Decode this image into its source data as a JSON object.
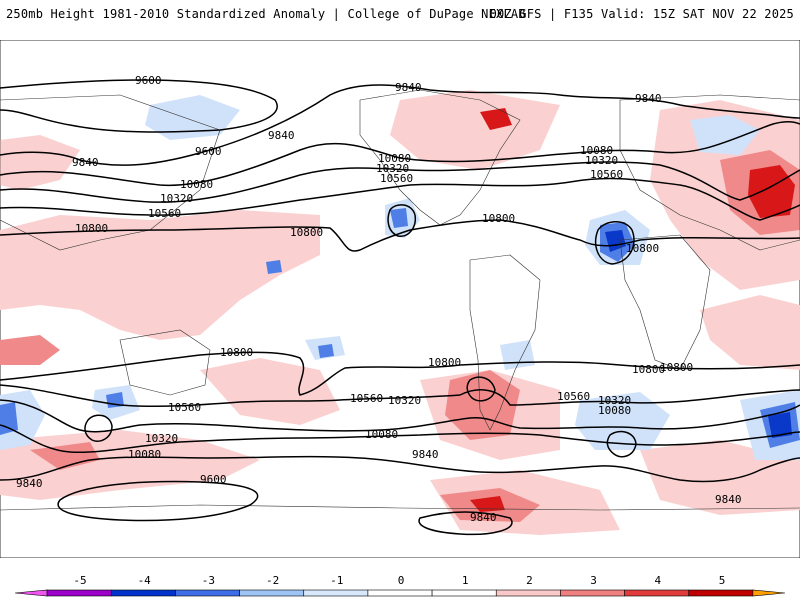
{
  "header": {
    "left": "250mb Height 1981-2010 Standardized Anomaly | College of DuPage NEXLAB",
    "right": "00Z GFS | F135 Valid: 15Z SAT NOV 22 2025"
  },
  "contour_labels": [
    "9600",
    "9840",
    "10080",
    "10320",
    "10560",
    "10800"
  ],
  "colorbar": {
    "ticks": [
      "-5",
      "-4",
      "-3",
      "-2",
      "-1",
      "0",
      "1",
      "2",
      "3",
      "4",
      "5"
    ],
    "colors": [
      "#f055f0",
      "#9a00c8",
      "#0033cc",
      "#3d6ee8",
      "#9ec5f5",
      "#d8e8fb",
      "#ffffff",
      "#ffffff",
      "#f9c8c8",
      "#f08080",
      "#e03c3c",
      "#c00000",
      "#ffa000"
    ]
  },
  "colors": {
    "positive_light": "#fbd0d0",
    "positive_mid": "#f08a8a",
    "positive_strong": "#d81818",
    "negative_light": "#cfe2fa",
    "negative_mid": "#4f7fe6",
    "negative_strong": "#0a38c8"
  }
}
